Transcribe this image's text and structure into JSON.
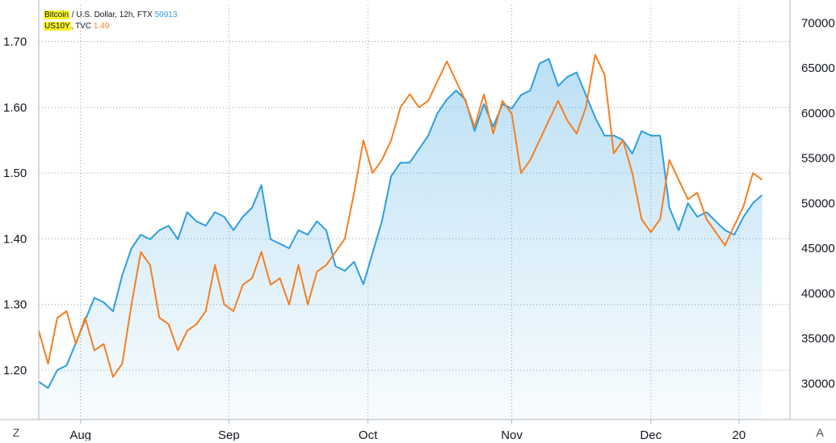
{
  "legend": {
    "btc": {
      "symbol": "Bitcoin",
      "rest": " / U.S. Dollar, 12h, FTX ",
      "value": "50913",
      "color": "#2d9ee0"
    },
    "us10y": {
      "symbol": "US10Y",
      "rest": ", TVC ",
      "value": "1.49",
      "color": "#f57f20"
    }
  },
  "corners": {
    "left": "Z",
    "right": "A"
  },
  "chart_data": {
    "type": "line",
    "x_axis": {
      "ticks": [
        {
          "label": "Aug",
          "t": 5
        },
        {
          "label": "Sep",
          "t": 37
        },
        {
          "label": "Oct",
          "t": 67
        },
        {
          "label": "Nov",
          "t": 98
        },
        {
          "label": "Dec",
          "t": 128
        },
        {
          "label": "20",
          "t": 147
        }
      ],
      "range": [
        -4,
        158
      ]
    },
    "y_left": {
      "ticks": [
        "1.20",
        "1.30",
        "1.40",
        "1.50",
        "1.60",
        "1.70"
      ],
      "range": [
        1.125,
        1.756
      ]
    },
    "y_right": {
      "ticks": [
        "30000",
        "35000",
        "40000",
        "45000",
        "50000",
        "55000",
        "60000",
        "65000",
        "70000"
      ],
      "range": [
        26000,
        72000
      ]
    },
    "grid": true,
    "series": [
      {
        "name": "Bitcoin",
        "axis": "right",
        "color": "#2d9ee0",
        "fill": true,
        "points": [
          [
            -4,
            30200
          ],
          [
            -2,
            29500
          ],
          [
            0,
            31500
          ],
          [
            2,
            32000
          ],
          [
            4,
            34500
          ],
          [
            6,
            37000
          ],
          [
            8,
            39500
          ],
          [
            10,
            39000
          ],
          [
            12,
            38000
          ],
          [
            14,
            42000
          ],
          [
            16,
            45000
          ],
          [
            18,
            46500
          ],
          [
            20,
            46000
          ],
          [
            22,
            47000
          ],
          [
            24,
            47500
          ],
          [
            26,
            46000
          ],
          [
            28,
            49000
          ],
          [
            30,
            48000
          ],
          [
            32,
            47500
          ],
          [
            34,
            49000
          ],
          [
            36,
            48500
          ],
          [
            38,
            47000
          ],
          [
            40,
            48500
          ],
          [
            42,
            49500
          ],
          [
            44,
            52000
          ],
          [
            46,
            46000
          ],
          [
            48,
            45500
          ],
          [
            50,
            45000
          ],
          [
            52,
            47000
          ],
          [
            54,
            46500
          ],
          [
            56,
            48000
          ],
          [
            58,
            47000
          ],
          [
            60,
            43000
          ],
          [
            62,
            42500
          ],
          [
            64,
            43500
          ],
          [
            66,
            41000
          ],
          [
            68,
            44500
          ],
          [
            70,
            48000
          ],
          [
            72,
            53000
          ],
          [
            74,
            54500
          ],
          [
            76,
            54500
          ],
          [
            78,
            56000
          ],
          [
            80,
            57500
          ],
          [
            82,
            60000
          ],
          [
            84,
            61500
          ],
          [
            86,
            62500
          ],
          [
            88,
            61500
          ],
          [
            90,
            58000
          ],
          [
            92,
            61000
          ],
          [
            94,
            58500
          ],
          [
            96,
            61000
          ],
          [
            98,
            60500
          ],
          [
            100,
            62000
          ],
          [
            102,
            62500
          ],
          [
            104,
            65500
          ],
          [
            106,
            66000
          ],
          [
            108,
            63000
          ],
          [
            110,
            64000
          ],
          [
            112,
            64500
          ],
          [
            114,
            62000
          ],
          [
            116,
            59500
          ],
          [
            118,
            57500
          ],
          [
            120,
            57500
          ],
          [
            122,
            57000
          ],
          [
            124,
            55500
          ],
          [
            126,
            58000
          ],
          [
            128,
            57500
          ],
          [
            130,
            57500
          ],
          [
            132,
            49500
          ],
          [
            134,
            47000
          ],
          [
            136,
            50000
          ],
          [
            138,
            48500
          ],
          [
            140,
            49000
          ],
          [
            142,
            48000
          ],
          [
            144,
            47000
          ],
          [
            146,
            46500
          ],
          [
            148,
            48500
          ],
          [
            150,
            50000
          ],
          [
            152,
            50913
          ]
        ]
      },
      {
        "name": "US10Y",
        "axis": "left",
        "color": "#f57f20",
        "fill": false,
        "points": [
          [
            -4,
            1.26
          ],
          [
            -2,
            1.21
          ],
          [
            0,
            1.28
          ],
          [
            2,
            1.29
          ],
          [
            4,
            1.24
          ],
          [
            6,
            1.28
          ],
          [
            8,
            1.23
          ],
          [
            10,
            1.24
          ],
          [
            12,
            1.19
          ],
          [
            14,
            1.21
          ],
          [
            16,
            1.3
          ],
          [
            18,
            1.38
          ],
          [
            20,
            1.36
          ],
          [
            22,
            1.28
          ],
          [
            24,
            1.27
          ],
          [
            26,
            1.23
          ],
          [
            28,
            1.26
          ],
          [
            30,
            1.27
          ],
          [
            32,
            1.29
          ],
          [
            34,
            1.36
          ],
          [
            36,
            1.3
          ],
          [
            38,
            1.29
          ],
          [
            40,
            1.33
          ],
          [
            42,
            1.34
          ],
          [
            44,
            1.38
          ],
          [
            46,
            1.33
          ],
          [
            48,
            1.34
          ],
          [
            50,
            1.3
          ],
          [
            52,
            1.36
          ],
          [
            54,
            1.3
          ],
          [
            56,
            1.35
          ],
          [
            58,
            1.36
          ],
          [
            60,
            1.38
          ],
          [
            62,
            1.4
          ],
          [
            64,
            1.47
          ],
          [
            66,
            1.55
          ],
          [
            68,
            1.5
          ],
          [
            70,
            1.52
          ],
          [
            72,
            1.55
          ],
          [
            74,
            1.6
          ],
          [
            76,
            1.62
          ],
          [
            78,
            1.6
          ],
          [
            80,
            1.61
          ],
          [
            82,
            1.64
          ],
          [
            84,
            1.67
          ],
          [
            86,
            1.64
          ],
          [
            88,
            1.61
          ],
          [
            90,
            1.57
          ],
          [
            92,
            1.62
          ],
          [
            94,
            1.56
          ],
          [
            96,
            1.61
          ],
          [
            98,
            1.59
          ],
          [
            100,
            1.5
          ],
          [
            102,
            1.52
          ],
          [
            104,
            1.55
          ],
          [
            106,
            1.58
          ],
          [
            108,
            1.61
          ],
          [
            110,
            1.58
          ],
          [
            112,
            1.56
          ],
          [
            114,
            1.6
          ],
          [
            116,
            1.68
          ],
          [
            118,
            1.65
          ],
          [
            120,
            1.53
          ],
          [
            122,
            1.55
          ],
          [
            124,
            1.5
          ],
          [
            126,
            1.43
          ],
          [
            128,
            1.41
          ],
          [
            130,
            1.43
          ],
          [
            132,
            1.52
          ],
          [
            134,
            1.49
          ],
          [
            136,
            1.46
          ],
          [
            138,
            1.47
          ],
          [
            140,
            1.43
          ],
          [
            142,
            1.41
          ],
          [
            144,
            1.39
          ],
          [
            146,
            1.42
          ],
          [
            148,
            1.45
          ],
          [
            150,
            1.5
          ],
          [
            152,
            1.49
          ]
        ]
      }
    ]
  }
}
